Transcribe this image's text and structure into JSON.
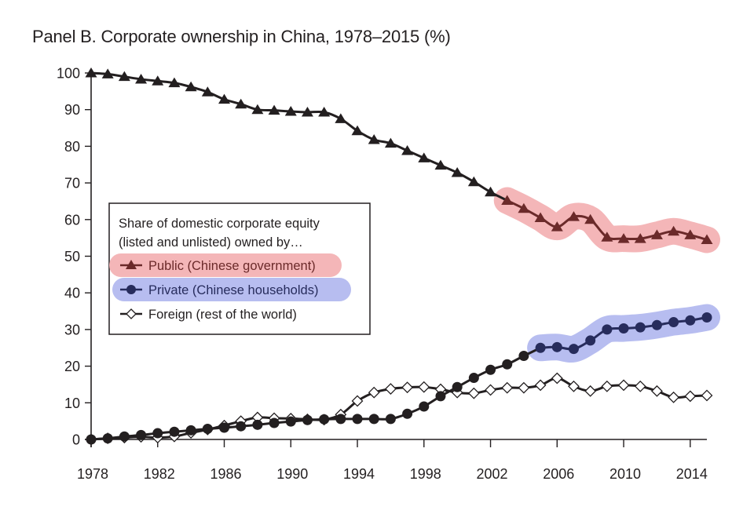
{
  "chart_data": {
    "type": "line",
    "title": "Panel B. Corporate ownership in China, 1978–2015 (%)",
    "xlabel": "",
    "ylabel": "",
    "xlim": [
      1978,
      2015
    ],
    "ylim": [
      0,
      100
    ],
    "x_ticks": [
      1978,
      1982,
      1986,
      1990,
      1994,
      1998,
      2002,
      2006,
      2010,
      2014
    ],
    "y_ticks": [
      0,
      10,
      20,
      30,
      40,
      50,
      60,
      70,
      80,
      90,
      100
    ],
    "grid": false,
    "legend": {
      "placement": "center-left",
      "heading_line1": "Share of domestic corporate equity",
      "heading_line2": "(listed and unlisted) owned by…"
    },
    "x": [
      1978,
      1979,
      1980,
      1981,
      1982,
      1983,
      1984,
      1985,
      1986,
      1987,
      1988,
      1989,
      1990,
      1991,
      1992,
      1993,
      1994,
      1995,
      1996,
      1997,
      1998,
      1999,
      2000,
      2001,
      2002,
      2003,
      2004,
      2005,
      2006,
      2007,
      2008,
      2009,
      2010,
      2011,
      2012,
      2013,
      2014,
      2015
    ],
    "series": [
      {
        "name": "Public (Chinese government)",
        "marker": "triangle",
        "color": "#231f20",
        "highlight_color": "#f4b6b8",
        "highlight_marker_color": "#6b2a2a",
        "highlight_from": 2003,
        "values": [
          100,
          99.7,
          99,
          98.3,
          97.8,
          97.3,
          96.2,
          94.8,
          92.8,
          91.5,
          90,
          89.8,
          89.5,
          89.3,
          89.3,
          87.5,
          84.2,
          81.8,
          80.8,
          78.8,
          76.8,
          74.8,
          72.8,
          70.3,
          67.5,
          65.2,
          63,
          60.5,
          58,
          60.8,
          60,
          55.2,
          54.8,
          54.8,
          55.8,
          56.8,
          55.8,
          54.5
        ]
      },
      {
        "name": "Private (Chinese households)",
        "marker": "circle",
        "color": "#231f20",
        "highlight_color": "#b7bdf0",
        "highlight_marker_color": "#272c5c",
        "highlight_from": 2005,
        "values": [
          0,
          0.3,
          0.8,
          1.2,
          1.7,
          2.1,
          2.5,
          2.9,
          3.2,
          3.6,
          4.0,
          4.5,
          4.9,
          5.3,
          5.5,
          5.6,
          5.6,
          5.6,
          5.6,
          7,
          9,
          11.8,
          14.3,
          16.8,
          19,
          20.5,
          22.8,
          25,
          25.2,
          24.7,
          27,
          30,
          30.3,
          30.6,
          31.2,
          32,
          32.5,
          33.3
        ]
      },
      {
        "name": "Foreign (rest of the world)",
        "marker": "diamond-open",
        "color": "#231f20",
        "values": [
          0,
          0.3,
          0.5,
          0.7,
          0.5,
          0.8,
          1.8,
          2.7,
          3.8,
          5,
          6,
          5.8,
          5.7,
          5.5,
          5.4,
          6.8,
          10.5,
          12.8,
          13.8,
          14.2,
          14.3,
          13.7,
          12.8,
          12.6,
          13.5,
          14.1,
          14.1,
          14.8,
          16.7,
          14.5,
          13.2,
          14.5,
          14.8,
          14.5,
          13.2,
          11.5,
          11.8,
          12
        ]
      }
    ]
  }
}
